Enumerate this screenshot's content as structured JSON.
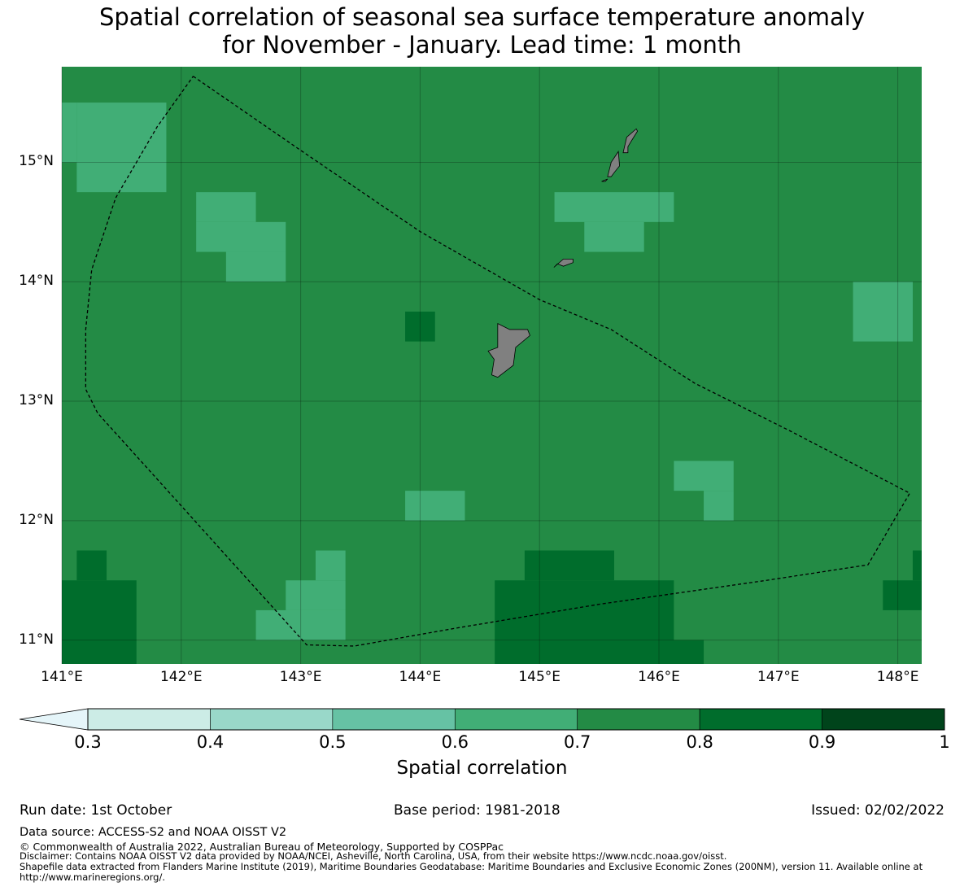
{
  "title": {
    "line1": "Spatial correlation of seasonal sea surface temperature anomaly",
    "line2": "for November - January. Lead time: 1 month"
  },
  "map": {
    "region": "Guam and Northern Mariana Islands",
    "lon_range": [
      141.0,
      148.2
    ],
    "lat_range": [
      10.8,
      15.8
    ],
    "lat_ticks": [
      "15°N",
      "14°N",
      "13°N",
      "12°N",
      "11°N"
    ],
    "lon_ticks": [
      "141°E",
      "142°E",
      "143°E",
      "144°E",
      "145°E",
      "146°E",
      "147°E",
      "148°E"
    ],
    "background_class": "0.7-0.8",
    "cell_size_deg": 0.25,
    "anomaly_cells": [
      {
        "lon": 141.0,
        "lat": 15.0,
        "w": 0.125,
        "h": 0.5,
        "cls": "0.6-0.7"
      },
      {
        "lon": 141.125,
        "lat": 14.75,
        "w": 0.75,
        "h": 0.75,
        "cls": "0.6-0.7"
      },
      {
        "lon": 142.125,
        "lat": 14.5,
        "w": 0.5,
        "h": 0.25,
        "cls": "0.6-0.7"
      },
      {
        "lon": 142.125,
        "lat": 14.25,
        "w": 0.75,
        "h": 0.25,
        "cls": "0.6-0.7"
      },
      {
        "lon": 142.375,
        "lat": 14.0,
        "w": 0.5,
        "h": 0.25,
        "cls": "0.6-0.7"
      },
      {
        "lon": 145.125,
        "lat": 14.5,
        "w": 1.0,
        "h": 0.25,
        "cls": "0.6-0.7"
      },
      {
        "lon": 145.375,
        "lat": 14.25,
        "w": 0.5,
        "h": 0.25,
        "cls": "0.6-0.7"
      },
      {
        "lon": 147.625,
        "lat": 13.5,
        "w": 0.5,
        "h": 0.5,
        "cls": "0.6-0.7"
      },
      {
        "lon": 143.875,
        "lat": 13.5,
        "w": 0.25,
        "h": 0.25,
        "cls": "0.8-0.9"
      },
      {
        "lon": 146.125,
        "lat": 12.25,
        "w": 0.5,
        "h": 0.25,
        "cls": "0.6-0.7"
      },
      {
        "lon": 146.375,
        "lat": 12.0,
        "w": 0.25,
        "h": 0.25,
        "cls": "0.6-0.7"
      },
      {
        "lon": 143.875,
        "lat": 12.0,
        "w": 0.5,
        "h": 0.25,
        "cls": "0.6-0.7"
      },
      {
        "lon": 143.125,
        "lat": 11.5,
        "w": 0.25,
        "h": 0.25,
        "cls": "0.6-0.7"
      },
      {
        "lon": 142.875,
        "lat": 11.25,
        "w": 0.5,
        "h": 0.25,
        "cls": "0.6-0.7"
      },
      {
        "lon": 142.625,
        "lat": 11.0,
        "w": 0.75,
        "h": 0.25,
        "cls": "0.6-0.7"
      },
      {
        "lon": 141.125,
        "lat": 11.5,
        "w": 0.25,
        "h": 0.25,
        "cls": "0.8-0.9"
      },
      {
        "lon": 141.0,
        "lat": 10.8,
        "w": 0.625,
        "h": 0.7,
        "cls": "0.8-0.9"
      },
      {
        "lon": 144.875,
        "lat": 11.5,
        "w": 0.75,
        "h": 0.25,
        "cls": "0.8-0.9"
      },
      {
        "lon": 144.625,
        "lat": 11.0,
        "w": 1.5,
        "h": 0.5,
        "cls": "0.8-0.9"
      },
      {
        "lon": 144.625,
        "lat": 10.8,
        "w": 1.75,
        "h": 0.2,
        "cls": "0.8-0.9"
      },
      {
        "lon": 148.125,
        "lat": 11.5,
        "w": 0.075,
        "h": 0.25,
        "cls": "0.8-0.9"
      },
      {
        "lon": 147.875,
        "lat": 11.25,
        "w": 0.325,
        "h": 0.25,
        "cls": "0.8-0.9"
      }
    ],
    "eez_boundary": [
      [
        142.1,
        15.72
      ],
      [
        143.0,
        15.1
      ],
      [
        144.0,
        14.42
      ],
      [
        145.0,
        13.85
      ],
      [
        145.6,
        13.6
      ],
      [
        146.3,
        13.15
      ],
      [
        147.1,
        12.75
      ],
      [
        148.1,
        12.23
      ],
      [
        147.75,
        11.63
      ],
      [
        146.9,
        11.5
      ],
      [
        145.5,
        11.3
      ],
      [
        144.3,
        11.1
      ],
      [
        143.45,
        10.95
      ],
      [
        143.05,
        10.96
      ],
      [
        141.3,
        12.9
      ],
      [
        141.2,
        13.1
      ],
      [
        141.2,
        13.6
      ],
      [
        141.25,
        14.1
      ],
      [
        141.45,
        14.7
      ],
      [
        141.8,
        15.3
      ],
      [
        142.1,
        15.72
      ]
    ],
    "islands": [
      {
        "name": "Guam",
        "outline": [
          [
            144.65,
            13.65
          ],
          [
            144.75,
            13.6
          ],
          [
            144.9,
            13.6
          ],
          [
            144.92,
            13.55
          ],
          [
            144.8,
            13.45
          ],
          [
            144.78,
            13.3
          ],
          [
            144.65,
            13.2
          ],
          [
            144.6,
            13.22
          ],
          [
            144.62,
            13.35
          ],
          [
            144.57,
            13.42
          ],
          [
            144.65,
            13.45
          ],
          [
            144.65,
            13.65
          ]
        ]
      },
      {
        "name": "Rota",
        "outline": [
          [
            145.12,
            14.12
          ],
          [
            145.2,
            14.19
          ],
          [
            145.28,
            14.19
          ],
          [
            145.28,
            14.16
          ],
          [
            145.2,
            14.13
          ],
          [
            145.15,
            14.15
          ],
          [
            145.12,
            14.12
          ]
        ]
      },
      {
        "name": "Tinian",
        "outline": [
          [
            145.57,
            14.88
          ],
          [
            145.6,
            15.0
          ],
          [
            145.66,
            15.09
          ],
          [
            145.67,
            14.97
          ],
          [
            145.63,
            14.92
          ],
          [
            145.6,
            14.88
          ],
          [
            145.57,
            14.88
          ]
        ]
      },
      {
        "name": "Saipan",
        "outline": [
          [
            145.7,
            15.08
          ],
          [
            145.73,
            15.21
          ],
          [
            145.81,
            15.28
          ],
          [
            145.82,
            15.26
          ],
          [
            145.77,
            15.18
          ],
          [
            145.74,
            15.13
          ],
          [
            145.74,
            15.08
          ],
          [
            145.7,
            15.08
          ]
        ]
      },
      {
        "name": "Aguijan",
        "outline": [
          [
            145.52,
            14.84
          ],
          [
            145.57,
            14.86
          ],
          [
            145.55,
            14.84
          ],
          [
            145.52,
            14.84
          ]
        ]
      }
    ]
  },
  "colorbar": {
    "label": "Spatial correlation",
    "ticks": [
      "0.3",
      "0.4",
      "0.5",
      "0.6",
      "0.7",
      "0.8",
      "0.9",
      "1"
    ],
    "colors": {
      "below_0.3": "#e5f5f9",
      "0.3-0.4": "#ccece6",
      "0.4-0.5": "#99d8c9",
      "0.5-0.6": "#66c2a4",
      "0.6-0.7": "#41ae76",
      "0.7-0.8": "#238b45",
      "0.8-0.9": "#006d2c",
      "0.9-1": "#00441b"
    }
  },
  "footer": {
    "run_date": "Run date: 1st October",
    "base_period": "Base period: 1981-2018",
    "issued": "Issued: 02/02/2022",
    "data_source": "Data source: ACCESS-S2 and NOAA OISST V2",
    "copyright": "© Commonwealth of Australia 2022, Australian Bureau of Meteorology, Supported by COSPPac",
    "disclaimer": "Disclaimer: Contains NOAA OISST V2 data provided by NOAA/NCEI, Asheville, North Carolina, USA, from their website https://www.ncdc.noaa.gov/oisst.",
    "shapefile": "Shapefile data extracted from Flanders Marine Institute (2019), Maritime Boundaries Geodatabase: Maritime Boundaries and Exclusive Economic Zones (200NM), version 11. Available online at http://www.marineregions.org/."
  }
}
